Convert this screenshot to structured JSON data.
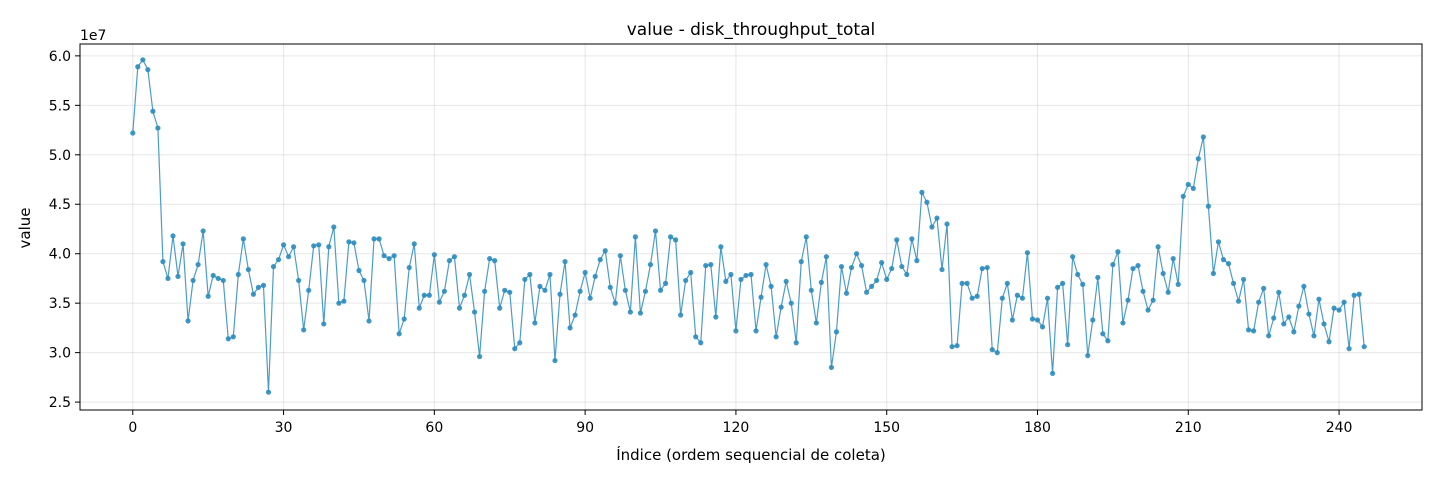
{
  "chart_data": {
    "type": "line",
    "title": "value - disk_throughput_total",
    "xlabel": "Índice (ordem sequencial de coleta)",
    "ylabel": "value",
    "y_offset_label": "1e7",
    "xlim": [
      -10.5,
      256.5
    ],
    "ylim": [
      2.42,
      6.12
    ],
    "x_ticks": [
      0,
      30,
      60,
      90,
      120,
      150,
      180,
      210,
      240
    ],
    "x_tick_labels": [
      "0",
      "30",
      "60",
      "90",
      "120",
      "150",
      "180",
      "210",
      "240"
    ],
    "y_ticks": [
      2.5,
      3.0,
      3.5,
      4.0,
      4.5,
      5.0,
      5.5,
      6.0
    ],
    "y_tick_labels": [
      "2.5",
      "3.0",
      "3.5",
      "4.0",
      "4.5",
      "5.0",
      "5.5",
      "6.0"
    ],
    "grid": true,
    "line_color": "#2b8cbe",
    "series": [
      {
        "values": [
          5.22,
          5.89,
          5.96,
          5.86,
          5.44,
          5.27,
          3.92,
          3.75,
          4.18,
          3.77,
          4.1,
          3.32,
          3.73,
          3.89,
          4.23,
          3.57,
          3.78,
          3.75,
          3.73,
          3.14,
          3.16,
          3.79,
          4.15,
          3.84,
          3.59,
          3.66,
          3.68,
          2.6,
          3.87,
          3.94,
          4.09,
          3.97,
          4.07,
          3.73,
          3.23,
          3.63,
          4.08,
          4.09,
          3.29,
          4.07,
          4.27,
          3.5,
          3.52,
          4.12,
          4.11,
          3.83,
          3.73,
          3.32,
          4.15,
          4.15,
          3.98,
          3.95,
          3.98,
          3.19,
          3.34,
          3.86,
          4.1,
          3.45,
          3.58,
          3.58,
          3.99,
          3.51,
          3.62,
          3.93,
          3.97,
          3.45,
          3.58,
          3.79,
          3.41,
          2.96,
          3.62,
          3.95,
          3.93,
          3.45,
          3.63,
          3.61,
          3.04,
          3.1,
          3.74,
          3.79,
          3.3,
          3.67,
          3.63,
          3.79,
          2.92,
          3.59,
          3.92,
          3.25,
          3.38,
          3.62,
          3.81,
          3.55,
          3.77,
          3.94,
          4.03,
          3.66,
          3.5,
          3.98,
          3.63,
          3.41,
          4.17,
          3.4,
          3.62,
          3.89,
          4.23,
          3.63,
          3.7,
          4.17,
          4.14,
          3.38,
          3.73,
          3.81,
          3.16,
          3.1,
          3.88,
          3.89,
          3.36,
          4.07,
          3.72,
          3.79,
          3.22,
          3.74,
          3.78,
          3.79,
          3.22,
          3.56,
          3.89,
          3.67,
          3.16,
          3.46,
          3.72,
          3.5,
          3.1,
          3.92,
          4.17,
          3.63,
          3.3,
          3.71,
          3.97,
          2.85,
          3.21,
          3.87,
          3.6,
          3.86,
          4.0,
          3.88,
          3.61,
          3.67,
          3.73,
          3.91,
          3.74,
          3.85,
          4.14,
          3.87,
          3.79,
          4.15,
          3.93,
          4.62,
          4.52,
          4.27,
          4.36,
          3.84,
          4.3,
          3.06,
          3.07,
          3.7,
          3.7,
          3.55,
          3.57,
          3.85,
          3.86,
          3.03,
          3.0,
          3.55,
          3.7,
          3.33,
          3.58,
          3.55,
          4.01,
          3.34,
          3.33,
          3.26,
          3.55,
          2.79,
          3.66,
          3.7,
          3.08,
          3.97,
          3.79,
          3.69,
          2.97,
          3.33,
          3.76,
          3.19,
          3.12,
          3.89,
          4.02,
          3.3,
          3.53,
          3.85,
          3.88,
          3.62,
          3.43,
          3.53,
          4.07,
          3.8,
          3.61,
          3.95,
          3.69,
          4.58,
          4.7,
          4.66,
          4.96,
          5.18,
          4.48,
          3.8,
          4.12,
          3.94,
          3.9,
          3.7,
          3.52,
          3.74,
          3.23,
          3.22,
          3.51,
          3.65,
          3.17,
          3.35,
          3.61,
          3.29,
          3.36,
          3.21,
          3.47,
          3.67,
          3.39,
          3.17,
          3.54,
          3.29,
          3.11,
          3.45,
          3.43,
          3.51,
          3.04,
          3.58,
          3.59,
          3.06
        ]
      }
    ]
  }
}
